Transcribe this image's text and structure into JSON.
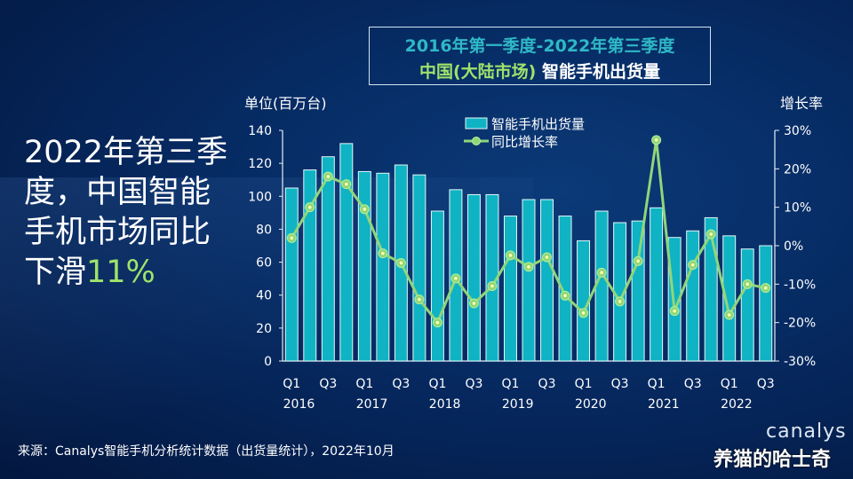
{
  "title": {
    "line1": "2016年第一季度-2022年第三季度",
    "line2_highlight": "中国(大陆市场)",
    "line2_rest": "智能手机出货量"
  },
  "headline": {
    "text": "2022年第三季度，中国智能手机市场同比下滑",
    "highlight": "11%"
  },
  "footer": {
    "source": "来源：Canalys智能手机分析统计数据（出货量统计），2022年10月"
  },
  "watermark": {
    "logo": "canalys",
    "text": "养猫的哈士奇"
  },
  "colors": {
    "bar": "#0fb3c4",
    "bar_border": "#e6f7f8",
    "line": "#8fd67a",
    "accent_green": "#9ee36a",
    "title_cyan": "#2fb8c6"
  },
  "chart_data": {
    "type": "bar+line",
    "y_left_label": "单位(百万台)",
    "y_right_label": "增长率",
    "y_left_range": [
      0,
      140
    ],
    "y_left_ticks": [
      "0",
      "20",
      "40",
      "60",
      "80",
      "100",
      "120",
      "140"
    ],
    "y_right_range": [
      -30,
      30
    ],
    "y_right_ticks": [
      "-30%",
      "-20%",
      "-10%",
      "0%",
      "10%",
      "20%",
      "30%"
    ],
    "grid": false,
    "legend_placement": "top",
    "categories": [
      "2016 Q1",
      "2016 Q2",
      "2016 Q3",
      "2016 Q4",
      "2017 Q1",
      "2017 Q2",
      "2017 Q3",
      "2017 Q4",
      "2018 Q1",
      "2018 Q2",
      "2018 Q3",
      "2018 Q4",
      "2019 Q1",
      "2019 Q2",
      "2019 Q3",
      "2019 Q4",
      "2020 Q1",
      "2020 Q2",
      "2020 Q3",
      "2020 Q4",
      "2021 Q1",
      "2021 Q2",
      "2021 Q3",
      "2021 Q4",
      "2022 Q1",
      "2022 Q2",
      "2022 Q3"
    ],
    "x_tick_labels": [
      {
        "index": 0,
        "quarter": "Q1",
        "year": "2016"
      },
      {
        "index": 2,
        "quarter": "Q3"
      },
      {
        "index": 4,
        "quarter": "Q1",
        "year": "2017"
      },
      {
        "index": 6,
        "quarter": "Q3"
      },
      {
        "index": 8,
        "quarter": "Q1",
        "year": "2018"
      },
      {
        "index": 10,
        "quarter": "Q3"
      },
      {
        "index": 12,
        "quarter": "Q1",
        "year": "2019"
      },
      {
        "index": 14,
        "quarter": "Q3"
      },
      {
        "index": 16,
        "quarter": "Q1",
        "year": "2020"
      },
      {
        "index": 18,
        "quarter": "Q3"
      },
      {
        "index": 20,
        "quarter": "Q1",
        "year": "2021"
      },
      {
        "index": 22,
        "quarter": "Q3"
      },
      {
        "index": 24,
        "quarter": "Q1",
        "year": "2022"
      },
      {
        "index": 26,
        "quarter": "Q3"
      }
    ],
    "series": [
      {
        "name": "智能手机出货量",
        "type": "bar",
        "axis": "left",
        "values": [
          105,
          116,
          124,
          132,
          115,
          114,
          119,
          113,
          91,
          104,
          101,
          101,
          88,
          98,
          98,
          88,
          73,
          91,
          84,
          85,
          93,
          75,
          79,
          87,
          76,
          68,
          70
        ]
      },
      {
        "name": "同比增长率",
        "type": "line",
        "axis": "right",
        "values": [
          2,
          10,
          18,
          16,
          9.5,
          -2,
          -4.5,
          -14,
          -20,
          -8.5,
          -15,
          -10.5,
          -2.5,
          -5.5,
          -3,
          -13,
          -17.5,
          -7,
          -14.5,
          -4,
          27.5,
          -17,
          -5,
          3,
          -18,
          -10,
          -11
        ]
      }
    ]
  }
}
